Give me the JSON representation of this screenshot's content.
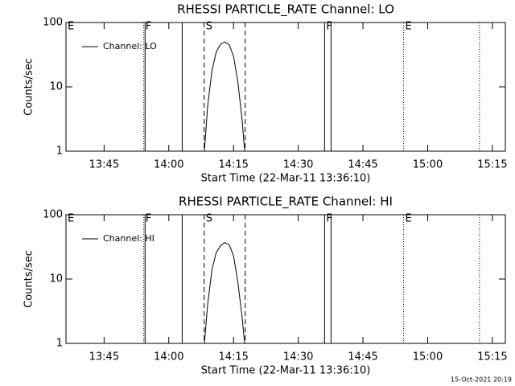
{
  "chart_data": [
    {
      "type": "line",
      "title": "RHESSI PARTICLE_RATE Channel: LO",
      "x_label": "Start Time (22-Mar-11 13:36:10)",
      "y_label": "Counts/sec",
      "xlim": [
        "13:36:10",
        "15:18:00"
      ],
      "xticks": [
        "13:45",
        "14:00",
        "14:15",
        "14:30",
        "14:45",
        "15:00",
        "15:15"
      ],
      "ylim": [
        1,
        100
      ],
      "yticks": [
        1,
        10,
        100
      ],
      "log_y": true,
      "legend": "upper left",
      "x": [
        "14:08:15",
        "14:09:00",
        "14:10:00",
        "14:11:00",
        "14:12:00",
        "14:13:00",
        "14:14:00",
        "14:15:00",
        "14:16:00",
        "14:17:00",
        "14:17:35"
      ],
      "series": [
        {
          "name": "Channel: LO",
          "color": "#000000",
          "values": [
            1,
            5,
            18,
            35,
            46,
            50,
            45,
            30,
            12,
            3,
            1
          ]
        }
      ],
      "flags": [
        {
          "time": "13:36:10",
          "style": "dotted",
          "label": "E"
        },
        {
          "time": "13:54:12",
          "style": "dotted",
          "label": "F"
        },
        {
          "time": "13:54:30",
          "style": "solid"
        },
        {
          "time": "14:03:06",
          "style": "solid"
        },
        {
          "time": "14:08:12",
          "style": "dashed",
          "label": "S"
        },
        {
          "time": "14:17:42",
          "style": "dashed"
        },
        {
          "time": "14:36:06",
          "style": "solid",
          "label": "F"
        },
        {
          "time": "14:37:36",
          "style": "solid"
        },
        {
          "time": "14:54:24",
          "style": "dotted",
          "label": "E"
        },
        {
          "time": "15:12:00",
          "style": "dotted"
        }
      ]
    },
    {
      "type": "line",
      "title": "RHESSI PARTICLE_RATE Channel: HI",
      "x_label": "Start Time (22-Mar-11 13:36:10)",
      "y_label": "Counts/sec",
      "xlim": [
        "13:36:10",
        "15:18:00"
      ],
      "xticks": [
        "13:45",
        "14:00",
        "14:15",
        "14:30",
        "14:45",
        "15:00",
        "15:15"
      ],
      "ylim": [
        1,
        100
      ],
      "yticks": [
        1,
        10,
        100
      ],
      "log_y": true,
      "legend": "upper left",
      "x": [
        "14:08:15",
        "14:09:00",
        "14:10:00",
        "14:11:00",
        "14:12:00",
        "14:13:00",
        "14:14:00",
        "14:15:00",
        "14:16:00",
        "14:17:00",
        "14:17:35"
      ],
      "series": [
        {
          "name": "Channel: HI",
          "color": "#000000",
          "values": [
            1,
            4,
            14,
            26,
            33,
            37,
            34,
            23,
            9,
            2.5,
            1
          ]
        }
      ],
      "flags": [
        {
          "time": "13:36:10",
          "style": "dotted",
          "label": "E"
        },
        {
          "time": "13:54:12",
          "style": "dotted",
          "label": "F"
        },
        {
          "time": "13:54:30",
          "style": "solid"
        },
        {
          "time": "14:03:06",
          "style": "solid"
        },
        {
          "time": "14:08:12",
          "style": "dashed",
          "label": "S"
        },
        {
          "time": "14:17:42",
          "style": "dashed"
        },
        {
          "time": "14:36:06",
          "style": "solid",
          "label": "F"
        },
        {
          "time": "14:37:36",
          "style": "solid"
        },
        {
          "time": "14:54:24",
          "style": "dotted",
          "label": "E"
        },
        {
          "time": "15:12:00",
          "style": "dotted"
        }
      ]
    }
  ],
  "footer": "15-Oct-2021 20:19"
}
